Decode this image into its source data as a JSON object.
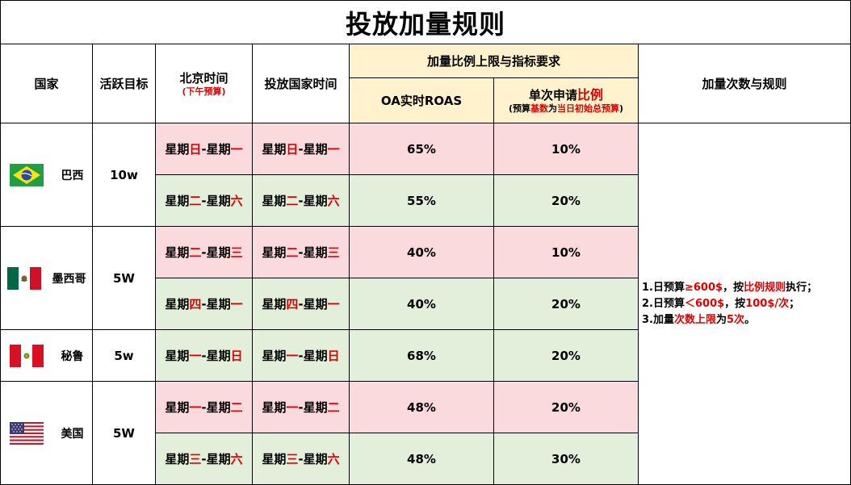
{
  "title": "投放加量规则",
  "headers": {
    "country": "国家",
    "target": "活跃目标",
    "beijing_time": "北京时间",
    "beijing_note": "(下午预算)",
    "local_time": "投放国家时间",
    "group": "加量比例上限与指标要求",
    "roas": "OA实时ROAS",
    "single_a": "单次申请",
    "single_b": "比例",
    "single_note_a": "(预算",
    "single_note_b": "基数",
    "single_note_c": "为",
    "single_note_d": "当日初始总预算",
    "single_note_e": ")",
    "rules": "加量次数与规则"
  },
  "countries": [
    {
      "name": "巴西",
      "target": "10w",
      "flag": "brazil-flag-icon"
    },
    {
      "name": "墨西哥",
      "target": "5W",
      "flag": "mexico-flag-icon"
    },
    {
      "name": "秘鲁",
      "target": "5w",
      "flag": "peru-flag-icon"
    },
    {
      "name": "美国",
      "target": "5W",
      "flag": "usa-flag-icon"
    }
  ],
  "rows": [
    {
      "bj_a": "星期",
      "bj_b": "日",
      "bj_c": "-星期",
      "bj_d": "一",
      "lt_a": "星期",
      "lt_b": "日",
      "lt_c": "-星期",
      "lt_d": "一",
      "roas": "65%",
      "ratio": "10%",
      "tone": "pink"
    },
    {
      "bj_a": "星期",
      "bj_b": "二",
      "bj_c": "-星期",
      "bj_d": "六",
      "lt_a": "星期",
      "lt_b": "二",
      "lt_c": "-星期",
      "lt_d": "六",
      "roas": "55%",
      "ratio": "20%",
      "tone": "green"
    },
    {
      "bj_a": "星期",
      "bj_b": "二",
      "bj_c": "-星期",
      "bj_d": "三",
      "lt_a": "星期",
      "lt_b": "二",
      "lt_c": "-星期",
      "lt_d": "三",
      "roas": "40%",
      "ratio": "10%",
      "tone": "pink"
    },
    {
      "bj_a": "星期",
      "bj_b": "四",
      "bj_c": "-星期",
      "bj_d": "一",
      "lt_a": "星期",
      "lt_b": "四",
      "lt_c": "-星期",
      "lt_d": "一",
      "roas": "40%",
      "ratio": "20%",
      "tone": "green"
    },
    {
      "bj_a": "星期",
      "bj_b": "一",
      "bj_c": "-星期",
      "bj_d": "日",
      "lt_a": "星期",
      "lt_b": "一",
      "lt_c": "-星期",
      "lt_d": "日",
      "roas": "68%",
      "ratio": "20%",
      "tone": "green"
    },
    {
      "bj_a": "星期",
      "bj_b": "一",
      "bj_c": "-星期",
      "bj_d": "二",
      "lt_a": "星期",
      "lt_b": "一",
      "lt_c": "-星期",
      "lt_d": "二",
      "roas": "48%",
      "ratio": "20%",
      "tone": "pink"
    },
    {
      "bj_a": "星期",
      "bj_b": "三",
      "bj_c": "-星期",
      "bj_d": "六",
      "lt_a": "星期",
      "lt_b": "三",
      "lt_c": "-星期",
      "lt_d": "六",
      "roas": "48%",
      "ratio": "30%",
      "tone": "green"
    }
  ],
  "rules": {
    "l1a": "1.日预算",
    "l1b": "≥600$",
    "l1c": "，按",
    "l1d": "比例规则",
    "l1e": "执行；",
    "l2a": "2.日预算",
    "l2b": "＜600$",
    "l2c": "，按",
    "l2d": "100$/次",
    "l2e": "；",
    "l3a": "3.加量",
    "l3b": "次数上限",
    "l3c": "为",
    "l3d": "5次",
    "l3e": "。"
  },
  "colors": {
    "pink": "#fadadd",
    "green": "#e2efda",
    "yellow": "#fff2cc",
    "accent_red": "#e00000"
  }
}
